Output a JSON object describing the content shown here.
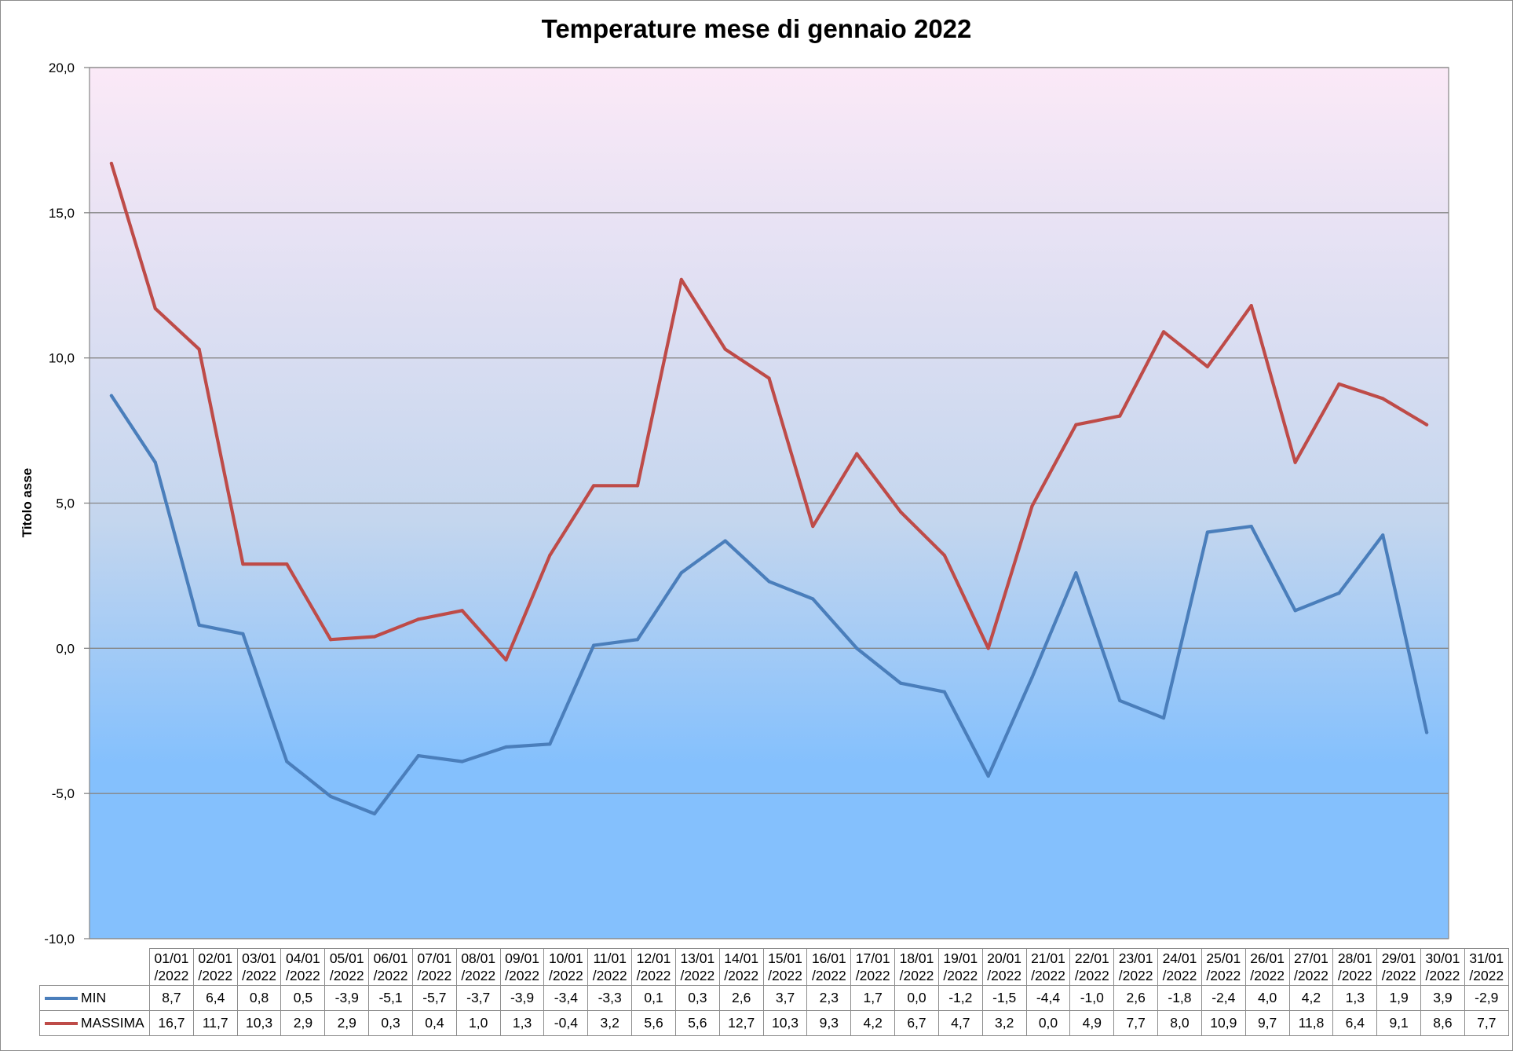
{
  "chart_data": {
    "type": "line",
    "title": "Temperature mese di gennaio 2022",
    "ylabel": "Titolo asse",
    "xlabel": "",
    "ylim": [
      -10,
      20
    ],
    "y_ticks": [
      "-10,0",
      "-5,0",
      "0,0",
      "5,0",
      "10,0",
      "15,0",
      "20,0"
    ],
    "grid": true,
    "legend": "data-table",
    "categories": [
      "01/01/2022",
      "02/01/2022",
      "03/01/2022",
      "04/01/2022",
      "05/01/2022",
      "06/01/2022",
      "07/01/2022",
      "08/01/2022",
      "09/01/2022",
      "10/01/2022",
      "11/01/2022",
      "12/01/2022",
      "13/01/2022",
      "14/01/2022",
      "15/01/2022",
      "16/01/2022",
      "17/01/2022",
      "18/01/2022",
      "19/01/2022",
      "20/01/2022",
      "21/01/2022",
      "22/01/2022",
      "23/01/2022",
      "24/01/2022",
      "25/01/2022",
      "26/01/2022",
      "27/01/2022",
      "28/01/2022",
      "29/01/2022",
      "30/01/2022",
      "31/01/2022"
    ],
    "category_lines": [
      [
        "01/01",
        "/2022"
      ],
      [
        "02/01",
        "/2022"
      ],
      [
        "03/01",
        "/2022"
      ],
      [
        "04/01",
        "/2022"
      ],
      [
        "05/01",
        "/2022"
      ],
      [
        "06/01",
        "/2022"
      ],
      [
        "07/01",
        "/2022"
      ],
      [
        "08/01",
        "/2022"
      ],
      [
        "09/01",
        "/2022"
      ],
      [
        "10/01",
        "/2022"
      ],
      [
        "11/01",
        "/2022"
      ],
      [
        "12/01",
        "/2022"
      ],
      [
        "13/01",
        "/2022"
      ],
      [
        "14/01",
        "/2022"
      ],
      [
        "15/01",
        "/2022"
      ],
      [
        "16/01",
        "/2022"
      ],
      [
        "17/01",
        "/2022"
      ],
      [
        "18/01",
        "/2022"
      ],
      [
        "19/01",
        "/2022"
      ],
      [
        "20/01",
        "/2022"
      ],
      [
        "21/01",
        "/2022"
      ],
      [
        "22/01",
        "/2022"
      ],
      [
        "23/01",
        "/2022"
      ],
      [
        "24/01",
        "/2022"
      ],
      [
        "25/01",
        "/2022"
      ],
      [
        "26/01",
        "/2022"
      ],
      [
        "27/01",
        "/2022"
      ],
      [
        "28/01",
        "/2022"
      ],
      [
        "29/01",
        "/2022"
      ],
      [
        "30/01",
        "/2022"
      ],
      [
        "31/01",
        "/2022"
      ]
    ],
    "series": [
      {
        "name": "MIN",
        "color": "#4a7ebb",
        "values": [
          8.7,
          6.4,
          0.8,
          0.5,
          -3.9,
          -5.1,
          -5.7,
          -3.7,
          -3.9,
          -3.4,
          -3.3,
          0.1,
          0.3,
          2.6,
          3.7,
          2.3,
          1.7,
          0.0,
          -1.2,
          -1.5,
          -4.4,
          -1.0,
          2.6,
          -1.8,
          -2.4,
          4.0,
          4.2,
          1.3,
          1.9,
          3.9,
          -2.9
        ],
        "labels": [
          "8,7",
          "6,4",
          "0,8",
          "0,5",
          "-3,9",
          "-5,1",
          "-5,7",
          "-3,7",
          "-3,9",
          "-3,4",
          "-3,3",
          "0,1",
          "0,3",
          "2,6",
          "3,7",
          "2,3",
          "1,7",
          "0,0",
          "-1,2",
          "-1,5",
          "-4,4",
          "-1,0",
          "2,6",
          "-1,8",
          "-2,4",
          "4,0",
          "4,2",
          "1,3",
          "1,9",
          "3,9",
          "-2,9"
        ]
      },
      {
        "name": "MASSIMA",
        "color": "#be4b48",
        "values": [
          16.7,
          11.7,
          10.3,
          2.9,
          2.9,
          0.3,
          0.4,
          1.0,
          1.3,
          -0.4,
          3.2,
          5.6,
          5.6,
          12.7,
          10.3,
          9.3,
          4.2,
          6.7,
          4.7,
          3.2,
          0.0,
          4.9,
          7.7,
          8.0,
          10.9,
          9.7,
          11.8,
          6.4,
          9.1,
          8.6,
          7.7
        ],
        "labels": [
          "16,7",
          "11,7",
          "10,3",
          "2,9",
          "2,9",
          "0,3",
          "0,4",
          "1,0",
          "1,3",
          "-0,4",
          "3,2",
          "5,6",
          "5,6",
          "12,7",
          "10,3",
          "9,3",
          "4,2",
          "6,7",
          "4,7",
          "3,2",
          "0,0",
          "4,9",
          "7,7",
          "8,0",
          "10,9",
          "9,7",
          "11,8",
          "6,4",
          "9,1",
          "8,6",
          "7,7"
        ]
      }
    ],
    "background": {
      "top_color": "#fbe9f7",
      "mid_color": "#c4d6ee",
      "bottom_color": "#84c0fd"
    },
    "gridline_color": "#868686"
  }
}
